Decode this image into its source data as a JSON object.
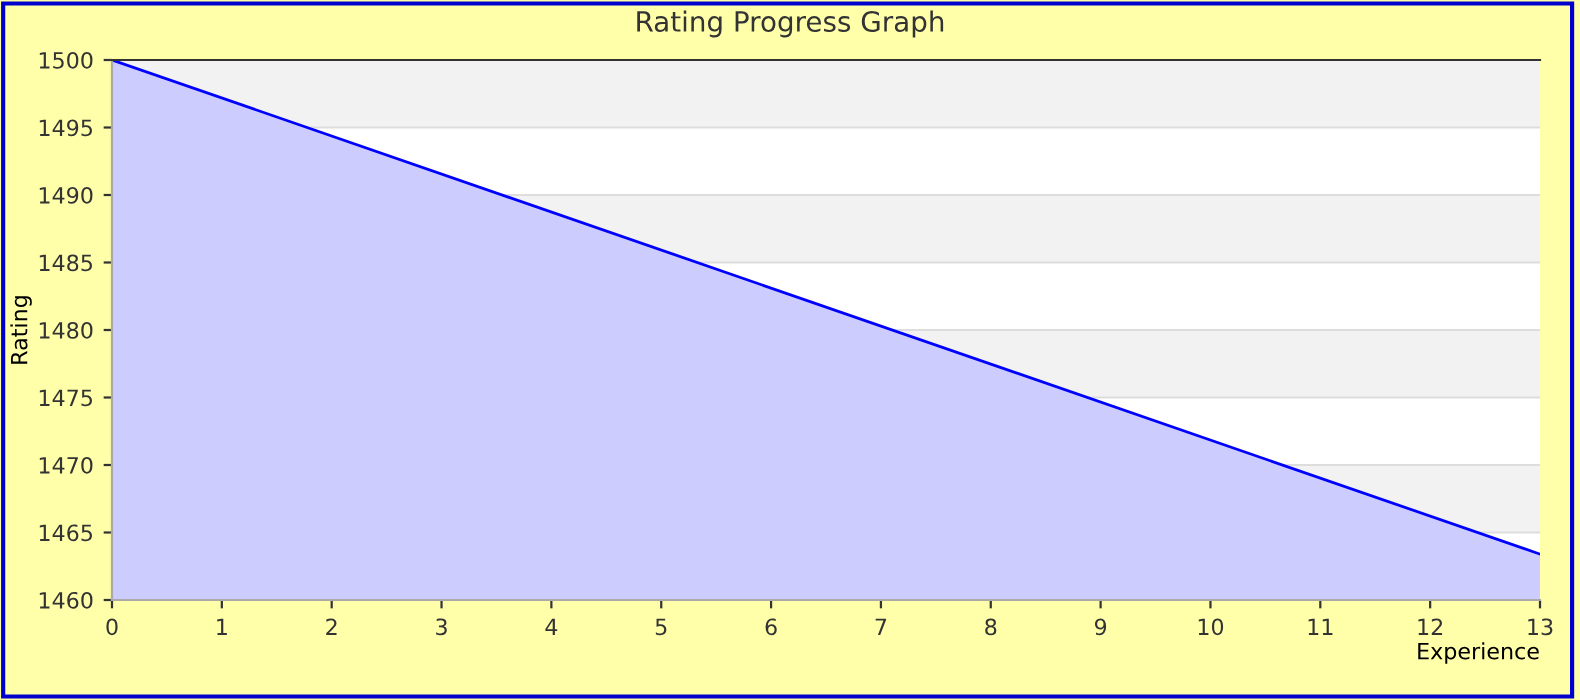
{
  "chart_data": {
    "type": "area",
    "title": "Rating Progress Graph",
    "xlabel": "Experience",
    "ylabel": "Rating",
    "x": [
      0,
      13
    ],
    "series": [
      {
        "color": "#0000ff",
        "values": [
          1500,
          1463.4
        ]
      }
    ],
    "xlim": [
      0,
      13
    ],
    "xticks": [
      0,
      1,
      2,
      3,
      4,
      5,
      6,
      7,
      8,
      9,
      10,
      11,
      12,
      13
    ],
    "ylim": [
      1460,
      1500
    ],
    "yticks": [
      1460,
      1465,
      1470,
      1475,
      1480,
      1485,
      1490,
      1495,
      1500
    ],
    "bands": [
      {
        "axis": "y",
        "from": 1465,
        "to": 1470,
        "color": "#f2f2f2"
      },
      {
        "axis": "y",
        "from": 1475,
        "to": 1480,
        "color": "#f2f2f2"
      },
      {
        "axis": "y",
        "from": 1485,
        "to": 1490,
        "color": "#f2f2f2"
      },
      {
        "axis": "y",
        "from": 1495,
        "to": 1500,
        "color": "#f2f2f2"
      }
    ],
    "grid": "y",
    "legend": false
  }
}
